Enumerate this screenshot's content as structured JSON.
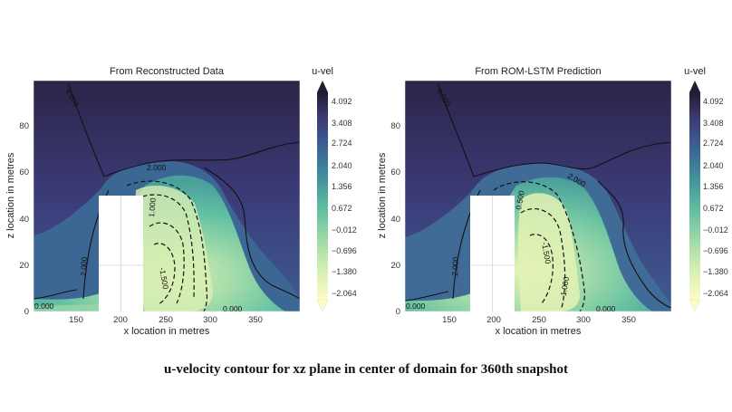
{
  "caption": "u-velocity contour for xz plane in center of domain for 360th snapshot",
  "chart_data": [
    {
      "type": "heatmap",
      "title": "From Reconstructed Data",
      "xlabel": "x location in metres",
      "ylabel": "z location in metres",
      "xlim": [
        100,
        400
      ],
      "ylim": [
        0,
        100
      ],
      "xticks": [
        150,
        200,
        250,
        300,
        350
      ],
      "yticks": [
        0,
        20,
        40,
        60,
        80
      ],
      "colorbar": {
        "label": "u-vel",
        "ticks": [
          "4.092",
          "3.408",
          "2.724",
          "2.040",
          "1.356",
          "0.672",
          "−0.012",
          "−0.696",
          "−1.380",
          "−2.064"
        ],
        "min": -2.064,
        "max": 4.092
      },
      "contour_labels": [
        "4.000",
        "2.000",
        "2.000",
        "1.000",
        "-1.500",
        "0.000",
        "0.000"
      ],
      "obstacle": {
        "x": [
          175,
          225
        ],
        "z": [
          0,
          50
        ]
      }
    },
    {
      "type": "heatmap",
      "title": "From ROM-LSTM Prediction",
      "xlabel": "x location in metres",
      "ylabel": "z location in metres",
      "xlim": [
        100,
        400
      ],
      "ylim": [
        0,
        100
      ],
      "xticks": [
        150,
        200,
        250,
        300,
        350
      ],
      "yticks": [
        0,
        20,
        40,
        60,
        80
      ],
      "colorbar": {
        "label": "u-vel",
        "ticks": [
          "4.092",
          "3.408",
          "2.724",
          "2.040",
          "1.356",
          "0.672",
          "−0.012",
          "−0.696",
          "−1.380",
          "−2.064"
        ],
        "min": -2.064,
        "max": 4.092
      },
      "contour_labels": [
        "4.000",
        "2.000",
        "2.000",
        "0.500",
        "-1.500",
        "-1.000",
        "0.000",
        "0.000"
      ],
      "obstacle": {
        "x": [
          175,
          225
        ],
        "z": [
          0,
          50
        ]
      }
    }
  ]
}
